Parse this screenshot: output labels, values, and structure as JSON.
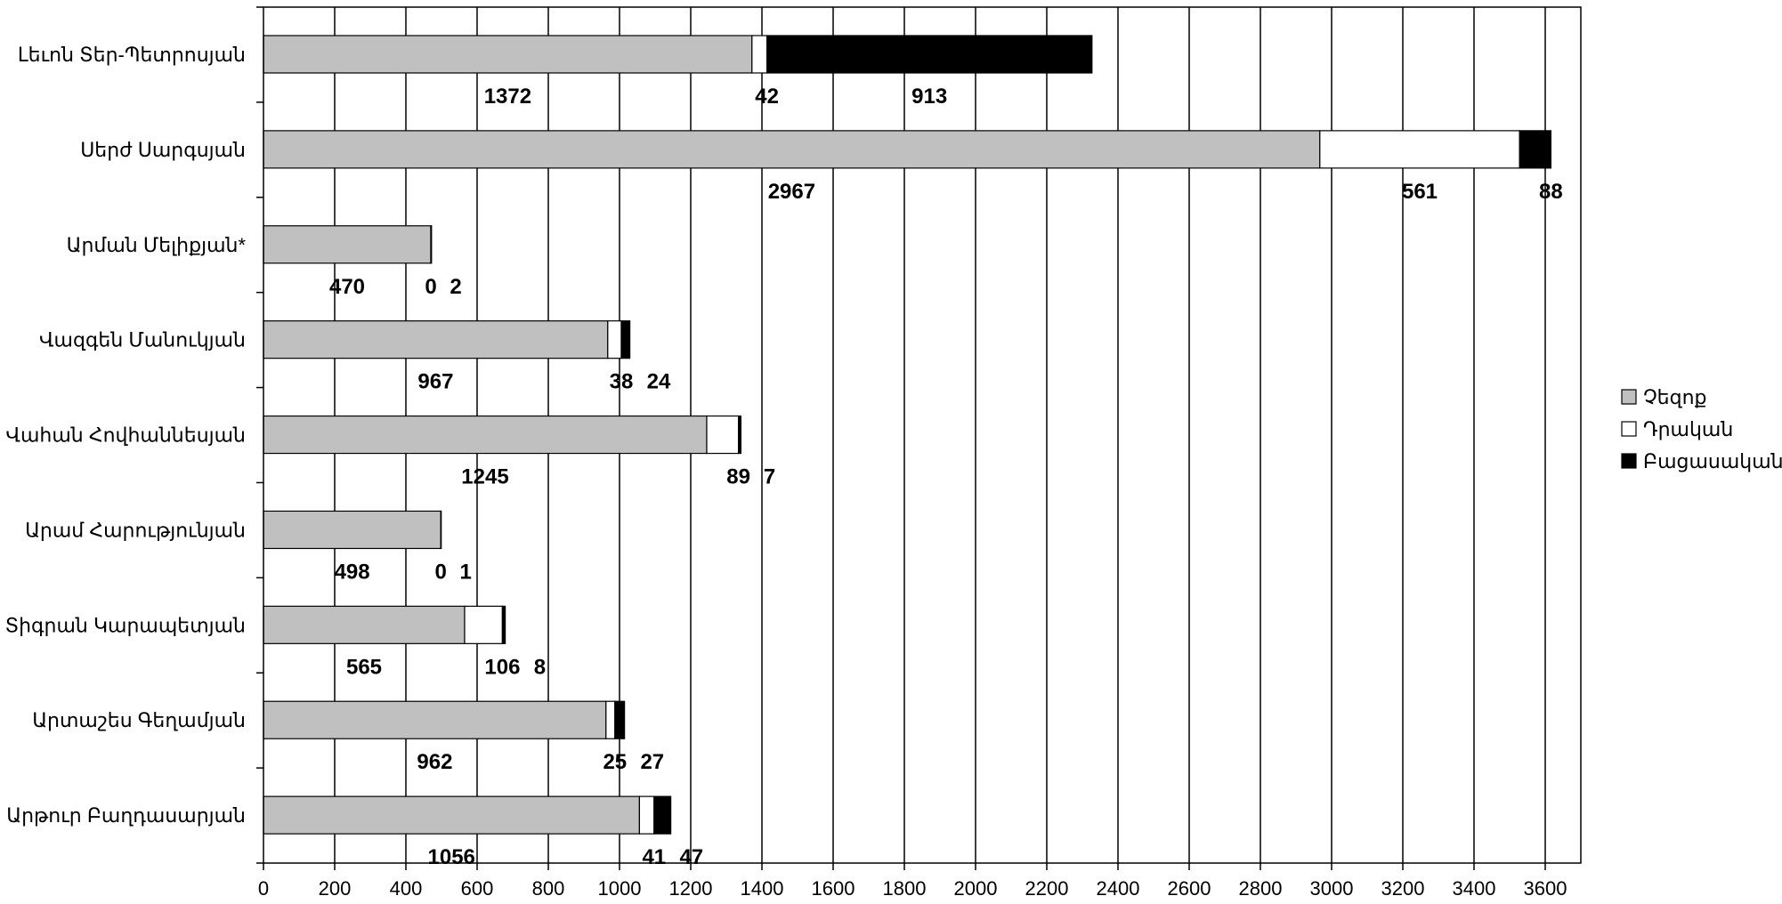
{
  "chart_data": {
    "type": "bar",
    "orientation": "horizontal",
    "stacked": true,
    "title": "",
    "xlabel": "",
    "ylabel": "",
    "xlim": [
      0,
      3700
    ],
    "x_ticks": [
      0,
      200,
      400,
      600,
      800,
      1000,
      1200,
      1400,
      1600,
      1800,
      2000,
      2200,
      2400,
      2600,
      2800,
      3000,
      3200,
      3400,
      3600
    ],
    "grid": "vertical",
    "legend_position": "right",
    "categories": [
      "Լեւոն Տեր-Պետրոսյան",
      "Սերժ Սարգսյան",
      "Արման Մելիքյան*",
      "Վազգեն Մանուկյան",
      "Վահան Հովհաննեսյան",
      "Արամ Հարությունյան",
      "Տիգրան Կարապետյան",
      "Արտաշես Գեղամյան",
      "Արթուր Բաղդասարյան"
    ],
    "series": [
      {
        "name": "Չեզոք",
        "color": "#c0c0c0",
        "values": [
          1372,
          2967,
          470,
          967,
          1245,
          498,
          565,
          962,
          1056
        ]
      },
      {
        "name": "Դրական",
        "color": "#ffffff",
        "values": [
          42,
          561,
          0,
          38,
          89,
          0,
          106,
          25,
          41
        ]
      },
      {
        "name": "Բացասական",
        "color": "#000000",
        "values": [
          913,
          88,
          2,
          24,
          7,
          1,
          8,
          27,
          47
        ]
      }
    ]
  }
}
